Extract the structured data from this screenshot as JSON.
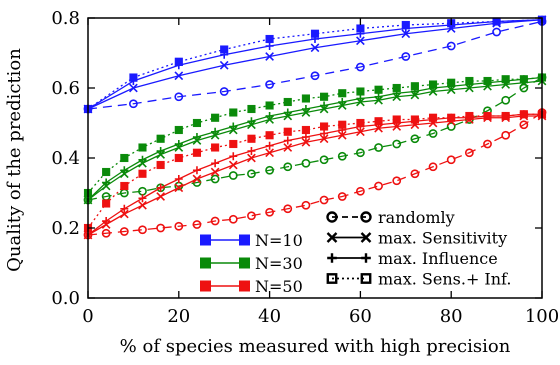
{
  "chart_data": {
    "type": "line",
    "xlabel": "% of species measured with high precision",
    "ylabel": "Quality of the prediction",
    "xlim": [
      0,
      100
    ],
    "ylim": [
      0.0,
      0.8
    ],
    "xticks": [
      "0",
      "20",
      "40",
      "60",
      "80",
      "100"
    ],
    "yticks": [
      "0.0",
      "0.2",
      "0.4",
      "0.6",
      "0.8"
    ],
    "grid": false,
    "legend_colors": {
      "position": "bottom-left",
      "entries": [
        {
          "label": "N=10",
          "color": "#1a1aff"
        },
        {
          "label": "N=30",
          "color": "#0a8a0a"
        },
        {
          "label": "N=50",
          "color": "#ee1111"
        }
      ]
    },
    "legend_methods": {
      "position": "bottom-right",
      "entries": [
        {
          "label": "randomly",
          "marker": "circle",
          "line": "dash"
        },
        {
          "label": "max. Sensitivity",
          "marker": "x",
          "line": "solid"
        },
        {
          "label": "max. Influence",
          "marker": "plus",
          "line": "solid"
        },
        {
          "label": "max. Sens.+ Inf.",
          "marker": "square",
          "line": "dot"
        }
      ]
    },
    "series": [
      {
        "group": "N=10",
        "method": "randomly",
        "color": "#1a1aff",
        "x": [
          0,
          10,
          20,
          30,
          40,
          50,
          60,
          70,
          80,
          90,
          100
        ],
        "y": [
          0.54,
          0.555,
          0.575,
          0.59,
          0.61,
          0.635,
          0.66,
          0.69,
          0.72,
          0.76,
          0.79
        ]
      },
      {
        "group": "N=10",
        "method": "max. Sensitivity",
        "color": "#1a1aff",
        "x": [
          0,
          10,
          20,
          30,
          40,
          50,
          60,
          70,
          80,
          90,
          100
        ],
        "y": [
          0.54,
          0.6,
          0.635,
          0.665,
          0.69,
          0.715,
          0.735,
          0.755,
          0.77,
          0.785,
          0.795
        ]
      },
      {
        "group": "N=10",
        "method": "max. Influence",
        "color": "#1a1aff",
        "x": [
          0,
          10,
          20,
          30,
          40,
          50,
          60,
          70,
          80,
          90,
          100
        ],
        "y": [
          0.54,
          0.62,
          0.665,
          0.695,
          0.72,
          0.74,
          0.755,
          0.77,
          0.78,
          0.79,
          0.795
        ]
      },
      {
        "group": "N=10",
        "method": "max. Sens.+ Inf.",
        "color": "#1a1aff",
        "x": [
          0,
          10,
          20,
          30,
          40,
          50,
          60,
          70,
          80,
          90,
          100
        ],
        "y": [
          0.54,
          0.63,
          0.675,
          0.71,
          0.74,
          0.755,
          0.77,
          0.78,
          0.785,
          0.79,
          0.795
        ]
      },
      {
        "group": "N=30",
        "method": "randomly",
        "color": "#0a8a0a",
        "x": [
          0,
          4,
          8,
          12,
          16,
          20,
          24,
          28,
          32,
          36,
          40,
          44,
          48,
          52,
          56,
          60,
          64,
          68,
          72,
          76,
          80,
          84,
          88,
          92,
          96,
          100
        ],
        "y": [
          0.28,
          0.29,
          0.3,
          0.305,
          0.315,
          0.32,
          0.33,
          0.34,
          0.35,
          0.355,
          0.365,
          0.375,
          0.385,
          0.395,
          0.405,
          0.415,
          0.43,
          0.44,
          0.455,
          0.47,
          0.49,
          0.51,
          0.535,
          0.565,
          0.6,
          0.63
        ]
      },
      {
        "group": "N=30",
        "method": "max. Sensitivity",
        "color": "#0a8a0a",
        "x": [
          0,
          4,
          8,
          12,
          16,
          20,
          24,
          28,
          32,
          36,
          40,
          44,
          48,
          52,
          56,
          60,
          64,
          68,
          72,
          76,
          80,
          84,
          88,
          92,
          96,
          100
        ],
        "y": [
          0.28,
          0.32,
          0.355,
          0.385,
          0.41,
          0.43,
          0.45,
          0.465,
          0.48,
          0.495,
          0.51,
          0.52,
          0.53,
          0.54,
          0.55,
          0.56,
          0.565,
          0.575,
          0.58,
          0.59,
          0.595,
          0.6,
          0.605,
          0.61,
          0.615,
          0.62
        ]
      },
      {
        "group": "N=30",
        "method": "max. Influence",
        "color": "#0a8a0a",
        "x": [
          0,
          4,
          8,
          12,
          16,
          20,
          24,
          28,
          32,
          36,
          40,
          44,
          48,
          52,
          56,
          60,
          64,
          68,
          72,
          76,
          80,
          84,
          88,
          92,
          96,
          100
        ],
        "y": [
          0.28,
          0.33,
          0.365,
          0.395,
          0.42,
          0.44,
          0.46,
          0.475,
          0.49,
          0.505,
          0.52,
          0.53,
          0.54,
          0.55,
          0.56,
          0.57,
          0.575,
          0.585,
          0.59,
          0.6,
          0.605,
          0.61,
          0.615,
          0.62,
          0.625,
          0.63
        ]
      },
      {
        "group": "N=30",
        "method": "max. Sens.+ Inf.",
        "color": "#0a8a0a",
        "x": [
          0,
          4,
          8,
          12,
          16,
          20,
          24,
          28,
          32,
          36,
          40,
          44,
          48,
          52,
          56,
          60,
          64,
          68,
          72,
          76,
          80,
          84,
          88,
          92,
          96,
          100
        ],
        "y": [
          0.3,
          0.36,
          0.4,
          0.43,
          0.455,
          0.48,
          0.5,
          0.515,
          0.53,
          0.54,
          0.55,
          0.56,
          0.57,
          0.575,
          0.585,
          0.59,
          0.595,
          0.6,
          0.605,
          0.61,
          0.615,
          0.62,
          0.62,
          0.625,
          0.625,
          0.63
        ]
      },
      {
        "group": "N=50",
        "method": "randomly",
        "color": "#ee1111",
        "x": [
          0,
          4,
          8,
          12,
          16,
          20,
          24,
          28,
          32,
          36,
          40,
          44,
          48,
          52,
          56,
          60,
          64,
          68,
          72,
          76,
          80,
          84,
          88,
          92,
          96,
          100
        ],
        "y": [
          0.18,
          0.185,
          0.19,
          0.195,
          0.2,
          0.205,
          0.21,
          0.22,
          0.225,
          0.235,
          0.245,
          0.255,
          0.265,
          0.28,
          0.29,
          0.305,
          0.32,
          0.335,
          0.355,
          0.375,
          0.395,
          0.415,
          0.44,
          0.465,
          0.495,
          0.53
        ]
      },
      {
        "group": "N=50",
        "method": "max. Sensitivity",
        "color": "#ee1111",
        "x": [
          0,
          4,
          8,
          12,
          16,
          20,
          24,
          28,
          32,
          36,
          40,
          44,
          48,
          52,
          56,
          60,
          64,
          68,
          72,
          76,
          80,
          84,
          88,
          92,
          96,
          100
        ],
        "y": [
          0.18,
          0.21,
          0.24,
          0.265,
          0.29,
          0.315,
          0.34,
          0.36,
          0.38,
          0.4,
          0.415,
          0.43,
          0.445,
          0.455,
          0.465,
          0.475,
          0.485,
          0.49,
          0.495,
          0.5,
          0.505,
          0.51,
          0.515,
          0.515,
          0.52,
          0.52
        ]
      },
      {
        "group": "N=50",
        "method": "max. Influence",
        "color": "#ee1111",
        "x": [
          0,
          4,
          8,
          12,
          16,
          20,
          24,
          28,
          32,
          36,
          40,
          44,
          48,
          52,
          56,
          60,
          64,
          68,
          72,
          76,
          80,
          84,
          88,
          92,
          96,
          100
        ],
        "y": [
          0.18,
          0.22,
          0.255,
          0.285,
          0.315,
          0.34,
          0.365,
          0.385,
          0.405,
          0.42,
          0.435,
          0.45,
          0.46,
          0.47,
          0.48,
          0.49,
          0.495,
          0.5,
          0.505,
          0.51,
          0.515,
          0.515,
          0.52,
          0.52,
          0.525,
          0.525
        ]
      },
      {
        "group": "N=50",
        "method": "max. Sens.+ Inf.",
        "color": "#ee1111",
        "x": [
          0,
          4,
          8,
          12,
          16,
          20,
          24,
          28,
          32,
          36,
          40,
          44,
          48,
          52,
          56,
          60,
          64,
          68,
          72,
          76,
          80,
          84,
          88,
          92,
          96,
          100
        ],
        "y": [
          0.2,
          0.27,
          0.32,
          0.355,
          0.38,
          0.4,
          0.415,
          0.43,
          0.44,
          0.455,
          0.465,
          0.475,
          0.48,
          0.49,
          0.495,
          0.5,
          0.505,
          0.51,
          0.51,
          0.515,
          0.515,
          0.52,
          0.52,
          0.52,
          0.525,
          0.525
        ]
      }
    ]
  }
}
